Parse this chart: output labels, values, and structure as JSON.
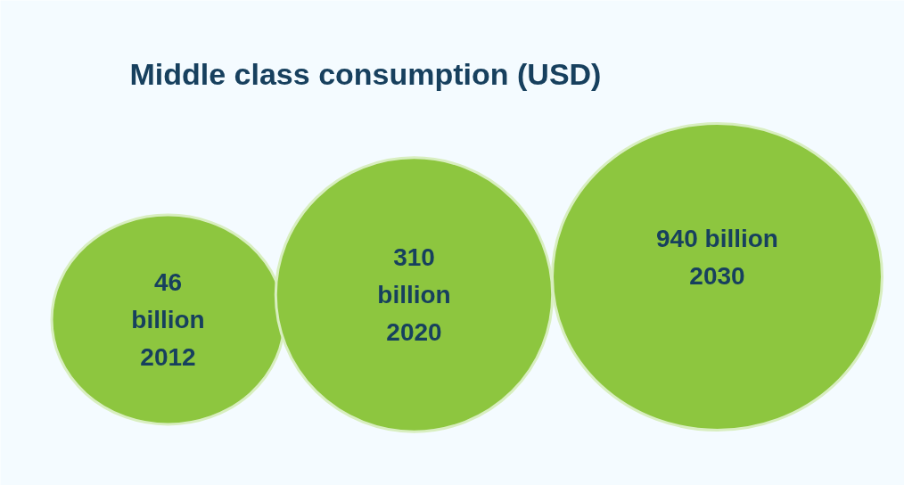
{
  "chart_data": {
    "type": "other",
    "title": "Middle class consumption (USD)",
    "categories": [
      "2012",
      "2020",
      "2030"
    ],
    "values": [
      46,
      310,
      940
    ],
    "value_labels": [
      "46 billion",
      "310 billion",
      "940 billion"
    ],
    "color": "#8dc63f"
  }
}
